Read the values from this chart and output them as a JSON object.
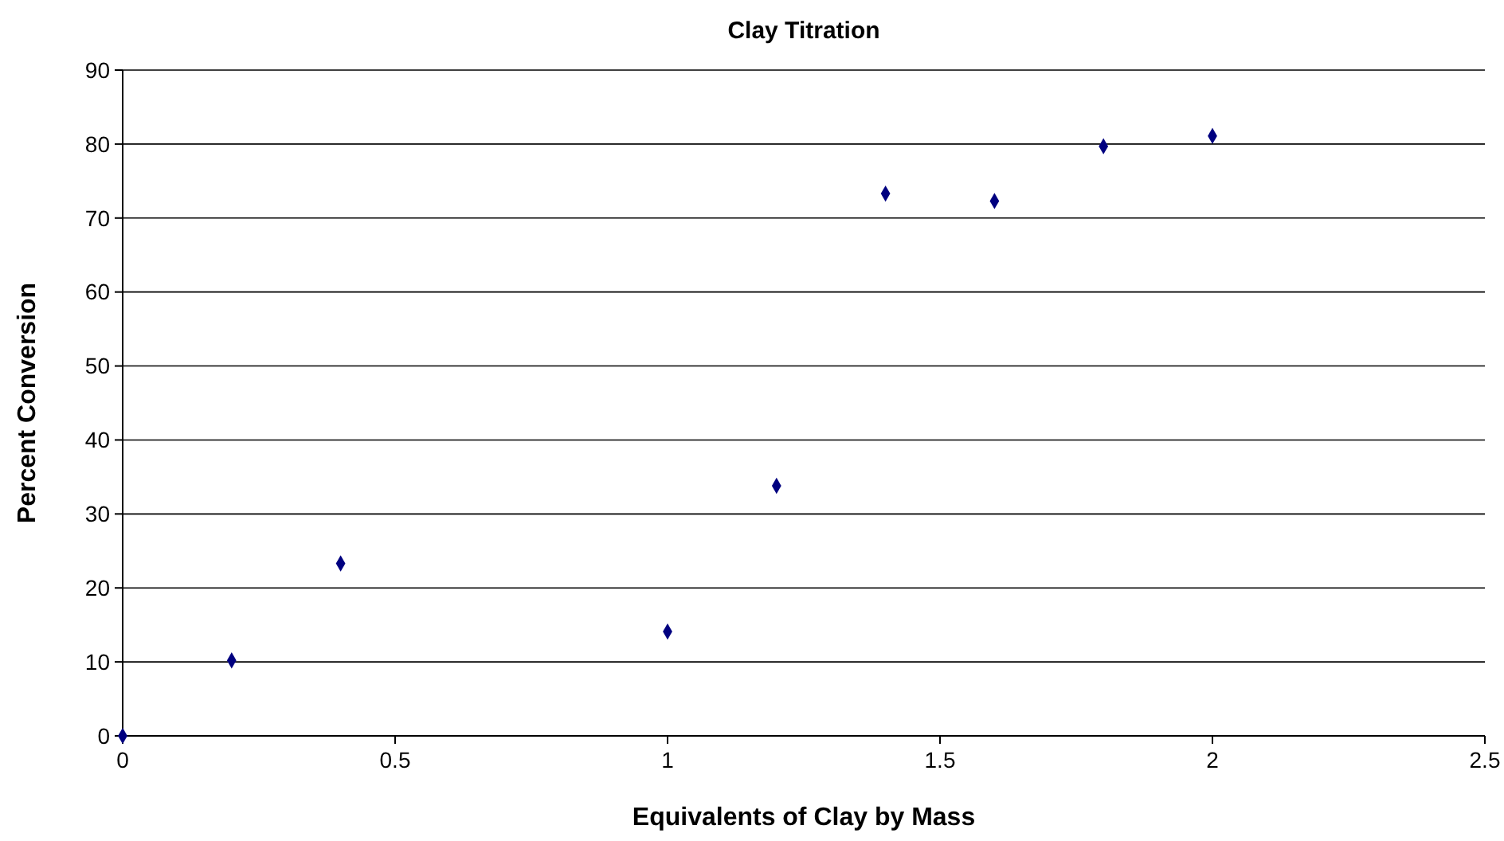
{
  "chart_data": {
    "type": "scatter",
    "title": "Clay Titration",
    "xlabel": "Equivalents of Clay by Mass",
    "ylabel": "Percent Conversion",
    "x": [
      0,
      0.2,
      0.4,
      1,
      1.2,
      1.4,
      1.6,
      1.8,
      2
    ],
    "series": [
      {
        "color": "#000080",
        "values": [
          0,
          10.2,
          23.3,
          14.1,
          33.8,
          73.3,
          72.3,
          79.7,
          81.1
        ]
      }
    ],
    "xlim": [
      0,
      2.5
    ],
    "xticks": [
      0,
      0.5,
      1,
      1.5,
      2,
      2.5
    ],
    "ylim": [
      0,
      90
    ],
    "yticks": [
      0,
      10,
      20,
      30,
      40,
      50,
      60,
      70,
      80,
      90
    ],
    "grid": "y",
    "marker": "diamond"
  }
}
